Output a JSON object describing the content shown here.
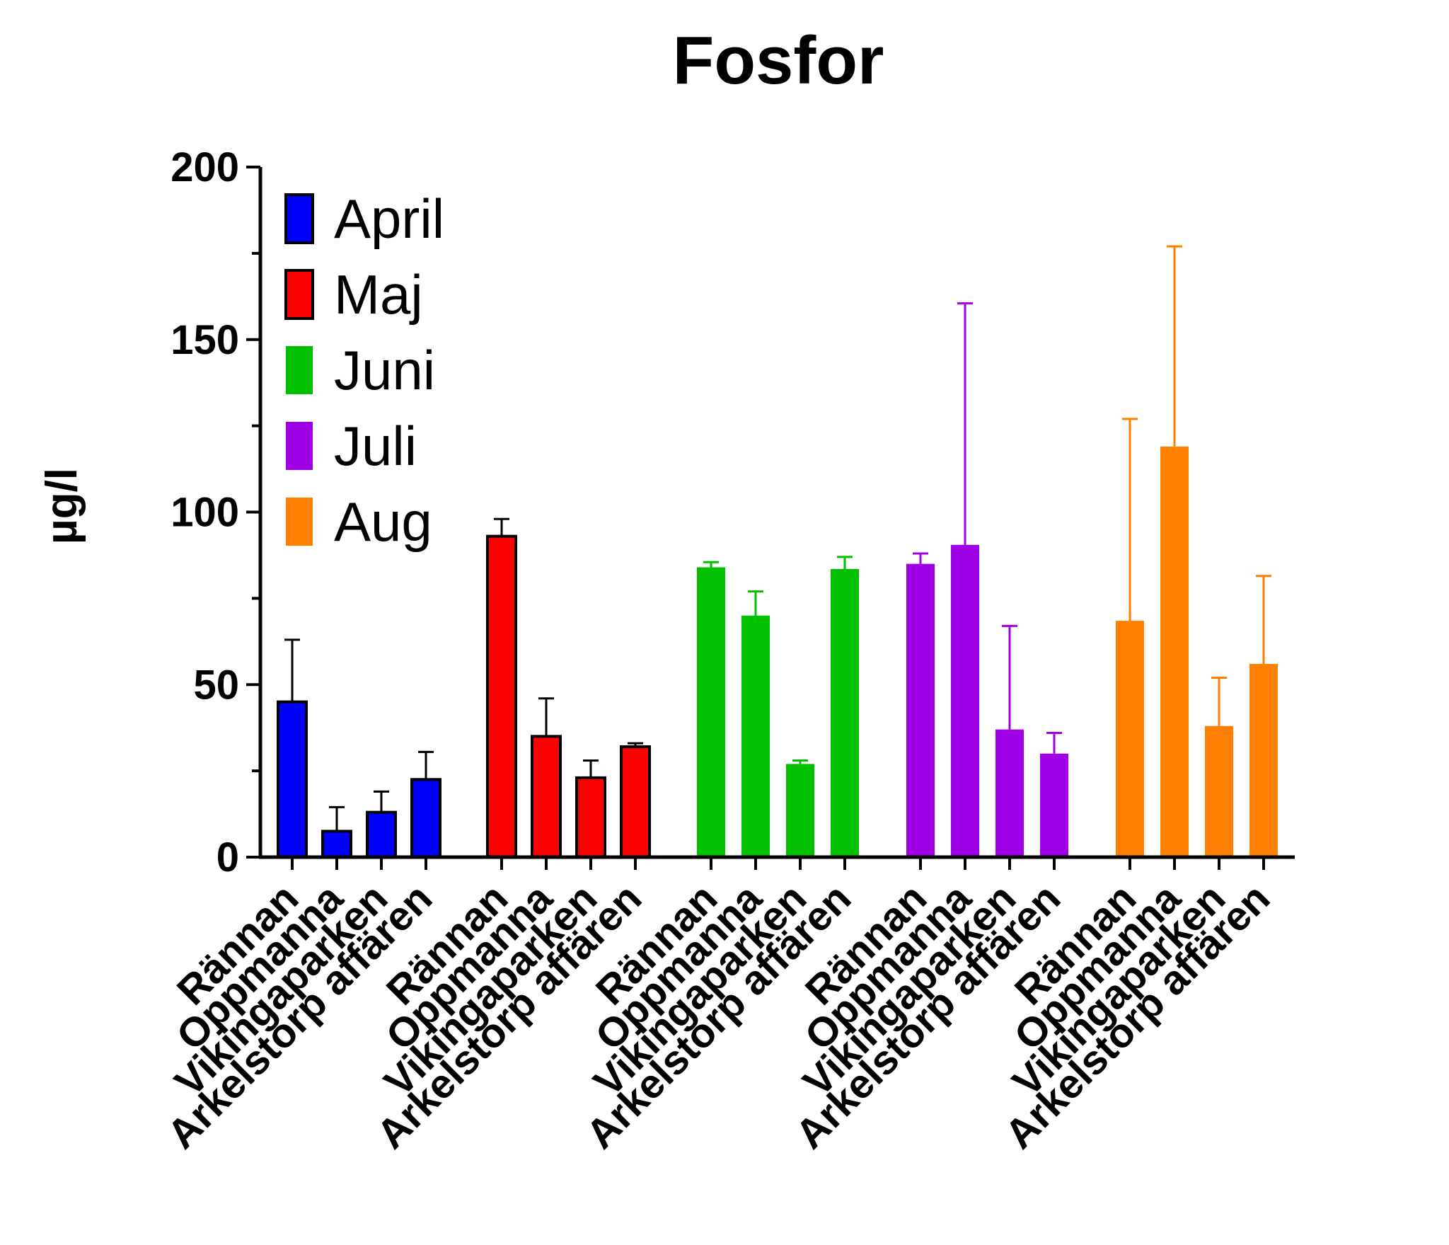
{
  "chart_data": {
    "type": "bar",
    "title": "Fosfor",
    "ylabel": "µg/l",
    "xlabel": "",
    "ylim": [
      0,
      200
    ],
    "yticks": [
      0,
      50,
      100,
      150,
      200
    ],
    "categories": [
      "Rännan",
      "Oppmanna",
      "Vikingaparken",
      "Arkelstorp affären"
    ],
    "legend_position": "top-left",
    "series": [
      {
        "name": "April",
        "color": "#0000FF",
        "outlined": true,
        "values": [
          45,
          7.5,
          13,
          22.5
        ],
        "errors": [
          18,
          7,
          6,
          8
        ]
      },
      {
        "name": "Maj",
        "color": "#FF0000",
        "outlined": true,
        "values": [
          93,
          35,
          23,
          32
        ],
        "errors": [
          5,
          11,
          5,
          1
        ]
      },
      {
        "name": "Juni",
        "color": "#00C000",
        "outlined": false,
        "values": [
          84,
          70,
          27,
          83.5
        ],
        "errors": [
          1.5,
          7,
          1,
          3.5
        ]
      },
      {
        "name": "Juli",
        "color": "#A000E6",
        "outlined": false,
        "values": [
          85,
          90.5,
          37,
          30
        ],
        "errors": [
          3,
          70,
          30,
          6
        ]
      },
      {
        "name": "Aug",
        "color": "#FF8000",
        "outlined": false,
        "values": [
          68.5,
          119,
          38,
          56
        ],
        "errors": [
          58.5,
          58,
          14,
          25.5
        ]
      }
    ]
  }
}
